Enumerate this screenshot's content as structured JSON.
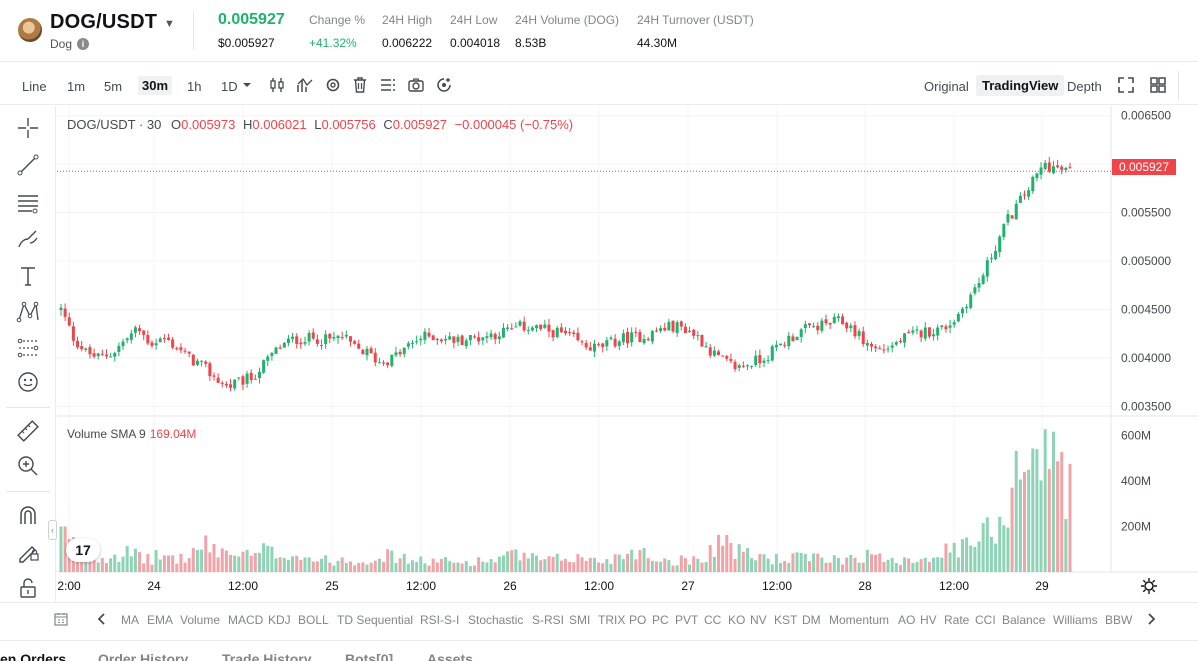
{
  "header": {
    "pair": "DOG/USDT",
    "coin_name": "Dog",
    "last_price": "0.005927",
    "last_price_usd": "$0.005927",
    "stats": [
      {
        "label": "Change %",
        "value": "+41.32%",
        "positive": true
      },
      {
        "label": "24H High",
        "value": "0.006222"
      },
      {
        "label": "24H Low",
        "value": "0.004018"
      },
      {
        "label": "24H Volume (DOG)",
        "value": "8.53B"
      },
      {
        "label": "24H Turnover (USDT)",
        "value": "44.30M"
      }
    ]
  },
  "toolbar": {
    "intervals": [
      "Line",
      "1m",
      "5m",
      "30m",
      "1h",
      "1D"
    ],
    "active_interval": "30m",
    "views": [
      "Original",
      "TradingView",
      "Depth"
    ],
    "active_view": "TradingView"
  },
  "legend": {
    "symbol": "DOG/USDT · 30",
    "o_label": "O",
    "o": "0.005973",
    "h_label": "H",
    "h": "0.006021",
    "l_label": "L",
    "l": "0.005756",
    "c_label": "C",
    "c": "0.005927",
    "change": "−0.000045 (−0.75%)"
  },
  "volume_legend": {
    "label": "Volume SMA 9",
    "value": "169.04M"
  },
  "current_price_tag": "0.005927",
  "chart_data": {
    "type": "candlestick",
    "price_axis": {
      "ticks": [
        "0.006500",
        "0.006000",
        "0.005500",
        "0.005000",
        "0.004500",
        "0.004000",
        "0.003500"
      ],
      "range": [
        0.0034,
        0.0066
      ]
    },
    "volume_axis": {
      "ticks": [
        "600M",
        "400M",
        "200M"
      ],
      "range": [
        0,
        650000000
      ]
    },
    "time_axis": {
      "ticks": [
        "2:00",
        "24",
        "12:00",
        "25",
        "12:00",
        "26",
        "12:00",
        "27",
        "12:00",
        "28",
        "12:00",
        "29"
      ]
    },
    "current_price": 0.005927,
    "colors": {
      "up": "#20b26c",
      "down": "#ef454a",
      "vol_up": "#8fd3b6",
      "vol_down": "#f2a3a7"
    },
    "close_path": [
      0.0045,
      0.0042,
      0.00405,
      0.004,
      0.00405,
      0.00418,
      0.0043,
      0.00415,
      0.0042,
      0.00412,
      0.004,
      0.00392,
      0.0038,
      0.0037,
      0.00375,
      0.0038,
      0.00395,
      0.0041,
      0.00418,
      0.0042,
      0.0042,
      0.00418,
      0.00422,
      0.0041,
      0.00405,
      0.00395,
      0.004,
      0.0041,
      0.0042,
      0.00423,
      0.0042,
      0.00418,
      0.0042,
      0.00422,
      0.00425,
      0.00428,
      0.00432,
      0.00432,
      0.00428,
      0.00426,
      0.0042,
      0.00412,
      0.0041,
      0.00415,
      0.0042,
      0.00422,
      0.00423,
      0.0043,
      0.00433,
      0.0043,
      0.0042,
      0.00405,
      0.00395,
      0.0039,
      0.00395,
      0.004,
      0.0041,
      0.0042,
      0.00428,
      0.00432,
      0.00435,
      0.00438,
      0.0043,
      0.00415,
      0.00408,
      0.00412,
      0.0042,
      0.00425,
      0.00428,
      0.0043,
      0.0044,
      0.0046,
      0.0048,
      0.0051,
      0.0054,
      0.0056,
      0.0058,
      0.006,
      0.00595,
      0.00592
    ],
    "volume_path": [
      180,
      120,
      90,
      70,
      80,
      90,
      70,
      60,
      80,
      60,
      70,
      120,
      110,
      90,
      80,
      70,
      100,
      80,
      90,
      70,
      60,
      50,
      60,
      50,
      60,
      80,
      70,
      60,
      50,
      50,
      50,
      40,
      50,
      50,
      60,
      70,
      80,
      60,
      50,
      60,
      70,
      60,
      50,
      60,
      80,
      110,
      70,
      60,
      50,
      60,
      60,
      110,
      160,
      90,
      80,
      70,
      60,
      60,
      70,
      60,
      60,
      60,
      70,
      80,
      60,
      70,
      60,
      60,
      80,
      90,
      100,
      120,
      160,
      200,
      300,
      560,
      600,
      480,
      560,
      380
    ]
  },
  "indicators": [
    "MA",
    "EMA",
    "Volume",
    "MACD",
    "KDJ",
    "BOLL",
    "TD Sequential",
    "RSI-S-I",
    "Stochastic",
    "S-RSI",
    "SMI",
    "TRIX",
    "PO",
    "PC",
    "PVT",
    "CC",
    "KO",
    "NV",
    "KST",
    "DM",
    "Momentum",
    "AO",
    "HV",
    "Rate",
    "CCI",
    "Balance",
    "Williams",
    "BBW"
  ],
  "bottom_tabs": [
    "en Orders",
    "Order History",
    "Trade History",
    "Bots[0]",
    "Assets"
  ],
  "tv_logo": "17"
}
